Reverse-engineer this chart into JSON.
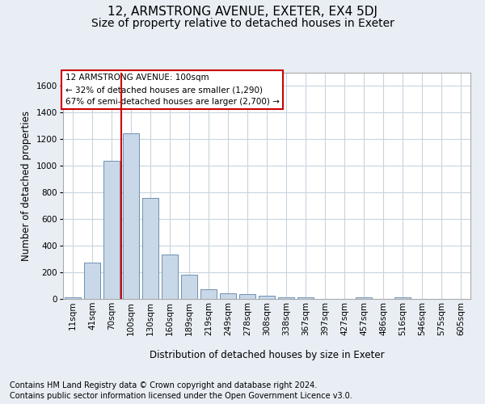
{
  "title": "12, ARMSTRONG AVENUE, EXETER, EX4 5DJ",
  "subtitle": "Size of property relative to detached houses in Exeter",
  "xlabel": "Distribution of detached houses by size in Exeter",
  "ylabel": "Number of detached properties",
  "footer_line1": "Contains HM Land Registry data © Crown copyright and database right 2024.",
  "footer_line2": "Contains public sector information licensed under the Open Government Licence v3.0.",
  "annotation_line1": "12 ARMSTRONG AVENUE: 100sqm",
  "annotation_line2": "← 32% of detached houses are smaller (1,290)",
  "annotation_line3": "67% of semi-detached houses are larger (2,700) →",
  "bar_color": "#c8d8e8",
  "bar_edge_color": "#7090b0",
  "vline_color": "#cc0000",
  "vline_x_index": 3,
  "categories": [
    "11sqm",
    "41sqm",
    "70sqm",
    "100sqm",
    "130sqm",
    "160sqm",
    "189sqm",
    "219sqm",
    "249sqm",
    "278sqm",
    "308sqm",
    "338sqm",
    "367sqm",
    "397sqm",
    "427sqm",
    "457sqm",
    "486sqm",
    "516sqm",
    "546sqm",
    "575sqm",
    "605sqm"
  ],
  "values": [
    10,
    275,
    1040,
    1245,
    760,
    335,
    180,
    75,
    45,
    38,
    22,
    15,
    15,
    0,
    0,
    15,
    0,
    15,
    0,
    0,
    0
  ],
  "ylim": [
    0,
    1700
  ],
  "yticks": [
    0,
    200,
    400,
    600,
    800,
    1000,
    1200,
    1400,
    1600
  ],
  "background_color": "#e8eef4",
  "plot_bg_color": "#ffffff",
  "grid_color": "#c8d4de",
  "title_fontsize": 11,
  "subtitle_fontsize": 10,
  "axis_label_fontsize": 8.5,
  "tick_fontsize": 7.5,
  "annotation_fontsize": 7.5,
  "footer_fontsize": 7
}
